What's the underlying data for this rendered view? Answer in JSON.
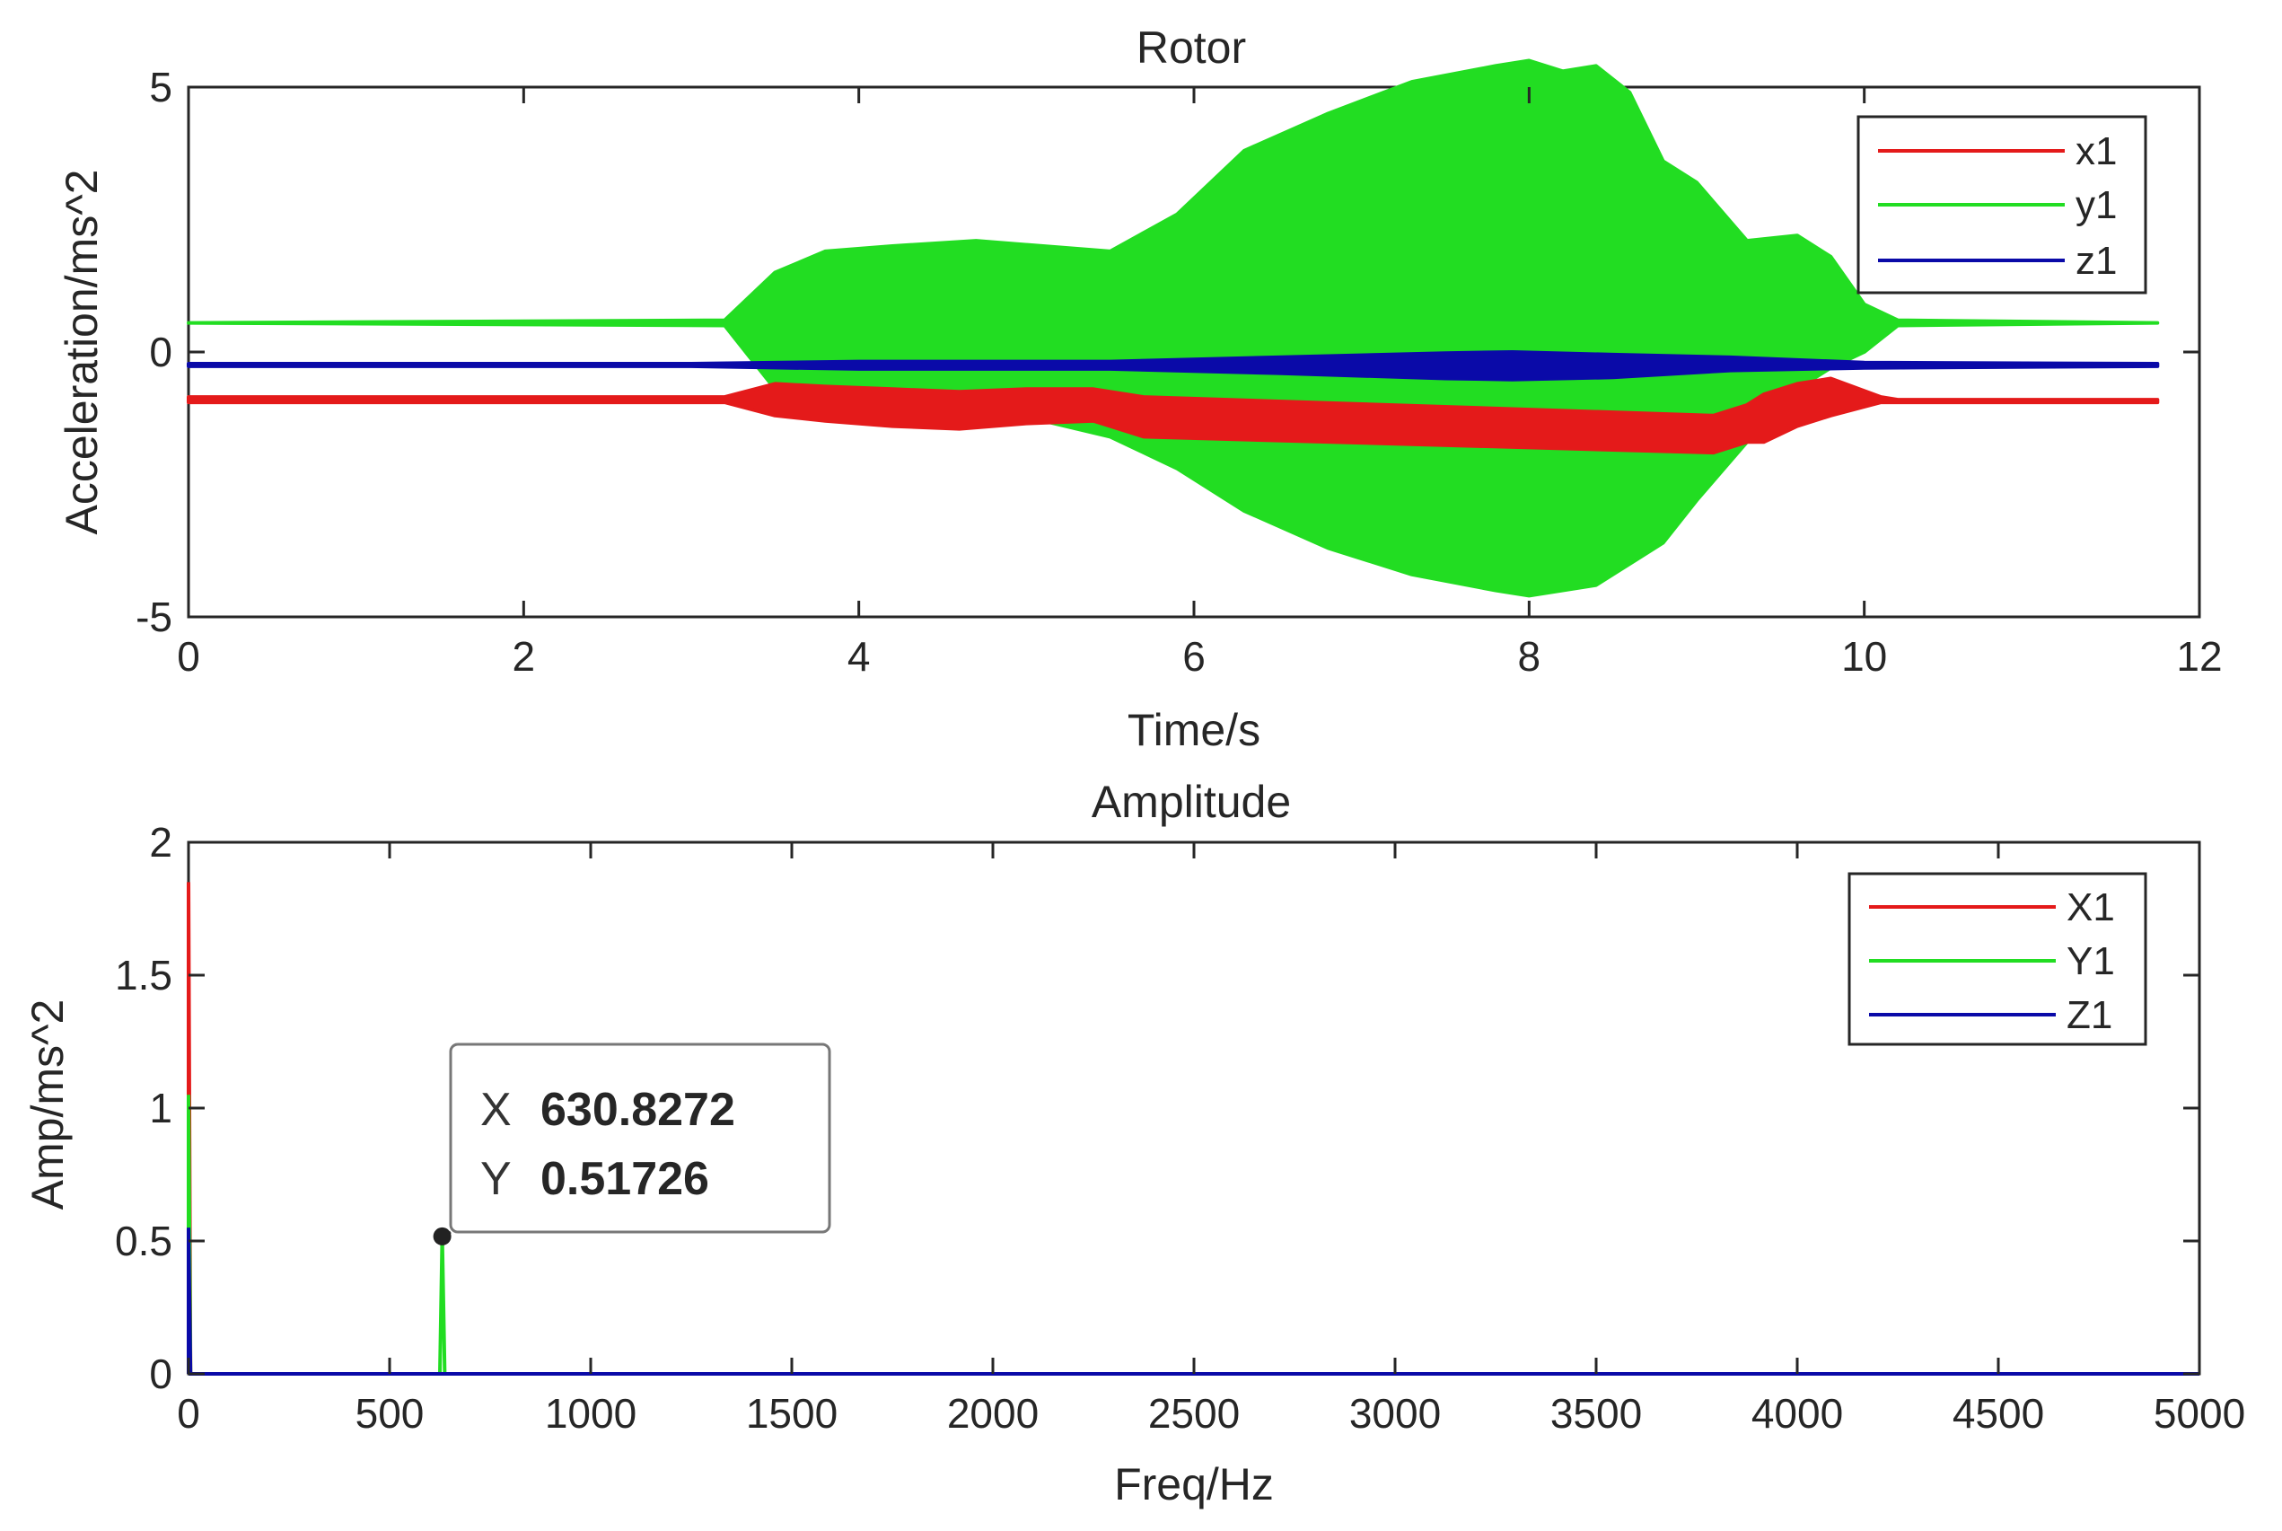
{
  "colors": {
    "x": "#e41a1a",
    "y": "#22dd22",
    "z": "#0a0aa8",
    "tip_value": "#1f8fd6"
  },
  "chart_data": [
    {
      "type": "line",
      "title": "Rotor",
      "xlabel": "Time/s",
      "ylabel": "Acceleration/ms^2",
      "xlim": [
        0,
        12
      ],
      "ylim": [
        -5,
        5
      ],
      "xticks": [
        0,
        2,
        4,
        6,
        8,
        10,
        12
      ],
      "yticks": [
        -5,
        0,
        5
      ],
      "xtick_labels": [
        "0",
        "2",
        "4",
        "6",
        "8",
        "10",
        "12"
      ],
      "ytick_labels": [
        "-5",
        "0",
        "5"
      ],
      "legend": {
        "entries": [
          "x1",
          "y1",
          "z1"
        ],
        "position": "top-right"
      },
      "series": [
        {
          "name": "y1",
          "color_key": "y",
          "envelope": {
            "t": [
              0,
              3.2,
              3.5,
              3.8,
              4.2,
              4.7,
              5.1,
              5.5,
              5.9,
              6.3,
              6.8,
              7.3,
              7.8,
              8.0,
              8.2,
              8.4,
              8.6,
              8.8,
              9.0,
              9.3,
              9.6,
              9.8,
              10.0,
              10.2,
              11.75
            ],
            "upper": [
              0.55,
              0.6,
              1.5,
              1.9,
              2.0,
              2.1,
              2.0,
              1.9,
              2.6,
              3.8,
              4.5,
              5.1,
              5.4,
              5.5,
              5.3,
              5.4,
              4.9,
              3.6,
              3.2,
              2.1,
              2.2,
              1.8,
              0.9,
              0.6,
              0.55
            ],
            "lower": [
              0.55,
              0.5,
              -0.7,
              -0.9,
              -1.0,
              -1.1,
              -1.3,
              -1.6,
              -2.2,
              -3.0,
              -3.7,
              -4.2,
              -4.5,
              -4.6,
              -4.5,
              -4.4,
              -4.0,
              -3.6,
              -2.8,
              -1.7,
              -0.7,
              -0.3,
              0.0,
              0.5,
              0.55
            ]
          }
        },
        {
          "name": "x1",
          "color_key": "x",
          "envelope": {
            "t": [
              0,
              3.2,
              3.5,
              3.8,
              4.2,
              4.6,
              5.0,
              5.4,
              5.7,
              9.1,
              9.3,
              9.4,
              9.6,
              9.8,
              10.1,
              10.2,
              11.75
            ],
            "upper": [
              -0.85,
              -0.85,
              -0.6,
              -0.65,
              -0.7,
              -0.75,
              -0.7,
              -0.7,
              -0.85,
              -1.2,
              -1.0,
              -0.8,
              -0.6,
              -0.5,
              -0.85,
              -0.9,
              -0.9
            ],
            "lower": [
              -0.95,
              -0.95,
              -1.2,
              -1.3,
              -1.4,
              -1.45,
              -1.35,
              -1.3,
              -1.6,
              -1.9,
              -1.7,
              -1.7,
              -1.4,
              -1.2,
              -0.95,
              -0.95,
              -0.95
            ]
          }
        },
        {
          "name": "z1",
          "color_key": "z",
          "envelope": {
            "t": [
              0,
              3.0,
              4.0,
              5.5,
              6.5,
              7.5,
              7.9,
              8.5,
              9.2,
              10.0,
              11.75
            ],
            "upper": [
              -0.22,
              -0.22,
              -0.18,
              -0.18,
              -0.1,
              -0.02,
              0.0,
              -0.05,
              -0.1,
              -0.2,
              -0.22
            ],
            "lower": [
              -0.27,
              -0.27,
              -0.32,
              -0.32,
              -0.4,
              -0.5,
              -0.52,
              -0.48,
              -0.35,
              -0.3,
              -0.27
            ]
          }
        }
      ]
    },
    {
      "type": "line",
      "title": "Amplitude",
      "xlabel": "Freq/Hz",
      "ylabel": "Amp/ms^2",
      "xlim": [
        0,
        5000
      ],
      "ylim": [
        0,
        2
      ],
      "xticks": [
        0,
        500,
        1000,
        1500,
        2000,
        2500,
        3000,
        3500,
        4000,
        4500,
        5000
      ],
      "yticks": [
        0,
        0.5,
        1,
        1.5,
        2
      ],
      "xtick_labels": [
        "0",
        "500",
        "1000",
        "1500",
        "2000",
        "2500",
        "3000",
        "3500",
        "4000",
        "4500",
        "5000"
      ],
      "ytick_labels": [
        "0",
        "0.5",
        "1",
        "1.5",
        "2"
      ],
      "legend": {
        "entries": [
          "X1",
          "Y1",
          "Z1"
        ],
        "position": "top-right"
      },
      "series": [
        {
          "name": "X1",
          "color_key": "x",
          "x": [
            0,
            0,
            5,
            5000
          ],
          "y": [
            0,
            1.85,
            0,
            0
          ]
        },
        {
          "name": "Y1",
          "color_key": "y",
          "x": [
            0,
            0,
            5,
            625,
            630.8272,
            637,
            5000
          ],
          "y": [
            0,
            1.05,
            0,
            0,
            0.51726,
            0,
            0
          ]
        },
        {
          "name": "Z1",
          "color_key": "z",
          "x": [
            0,
            0,
            5,
            5000
          ],
          "y": [
            0,
            0.55,
            0,
            0
          ]
        }
      ],
      "datatip": {
        "x_key": "X",
        "y_key": "Y",
        "x_value": "630.8272",
        "y_value": "0.51726",
        "x": 630.8272,
        "y": 0.51726
      }
    }
  ]
}
